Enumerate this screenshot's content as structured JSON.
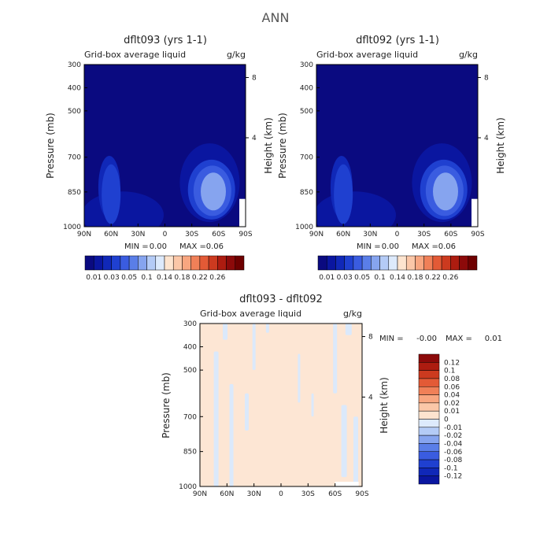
{
  "figure": {
    "title": "ANN"
  },
  "chart_data": [
    {
      "type": "heatmap",
      "title": "dflt093 (yrs 1-1)",
      "subtitle": "Grid-box average liquid",
      "units": "g/kg",
      "xlabel": "",
      "ylabel": "Pressure (mb)",
      "y2label": "Height (km)",
      "x_ticks": [
        "90N",
        "60N",
        "30N",
        "0",
        "30S",
        "60S",
        "90S"
      ],
      "y_ticks": [
        "300",
        "400",
        "500",
        "700",
        "850",
        "1000"
      ],
      "y_tick_values": [
        300,
        400,
        500,
        700,
        850,
        1000
      ],
      "y2_ticks": [
        "8",
        "4"
      ],
      "y2_tick_pressures": [
        356,
        616
      ],
      "ylim": [
        1000,
        300
      ],
      "xlim": [
        90,
        -90
      ],
      "min_label": "MIN =",
      "min_value": "0.00",
      "max_label": "MAX =",
      "max_value": "0.06",
      "colorbar": {
        "orientation": "horizontal",
        "colors": [
          "#0a0a80",
          "#0a16a0",
          "#1028b8",
          "#1f40d0",
          "#3a5ce0",
          "#5a7ee8",
          "#86a4ef",
          "#b4cbf6",
          "#ddeafc",
          "#fde4cf",
          "#fbc7a8",
          "#f8a680",
          "#f08058",
          "#e35a36",
          "#cc3a1f",
          "#ad1c10",
          "#8c0a0a",
          "#6e0000"
        ],
        "labels": [
          "0.01",
          "0.03",
          "0.05",
          "0.1",
          "0.14",
          "0.18",
          "0.22",
          "0.26"
        ],
        "label_after_index": [
          0,
          2,
          4,
          6,
          8,
          10,
          12,
          14
        ]
      },
      "blobs": [
        {
          "lat": 47,
          "p": 950,
          "level": 0
        },
        {
          "lat": -50,
          "p": 810,
          "level": 0
        },
        {
          "lat": 62,
          "p": 830,
          "level": 1
        },
        {
          "lat": -52,
          "p": 840,
          "level": 2
        },
        {
          "lat": 60,
          "p": 860,
          "level": 2
        },
        {
          "lat": -53,
          "p": 845,
          "level": 3
        },
        {
          "lat": -54,
          "p": 848,
          "level": 5
        }
      ]
    },
    {
      "type": "heatmap",
      "title": "dflt092 (yrs 1-1)",
      "subtitle": "Grid-box average liquid",
      "units": "g/kg",
      "xlabel": "",
      "ylabel": "Pressure (mb)",
      "y2label": "Height (km)",
      "x_ticks": [
        "90N",
        "60N",
        "30N",
        "0",
        "30S",
        "60S",
        "90S"
      ],
      "y_ticks": [
        "300",
        "400",
        "500",
        "700",
        "850",
        "1000"
      ],
      "y_tick_values": [
        300,
        400,
        500,
        700,
        850,
        1000
      ],
      "y2_ticks": [
        "8",
        "4"
      ],
      "y2_tick_pressures": [
        356,
        616
      ],
      "ylim": [
        1000,
        300
      ],
      "xlim": [
        90,
        -90
      ],
      "min_label": "MIN =",
      "min_value": "0.00",
      "max_label": "MAX =",
      "max_value": "0.06",
      "colorbar": {
        "orientation": "horizontal",
        "colors": [
          "#0a0a80",
          "#0a16a0",
          "#1028b8",
          "#1f40d0",
          "#3a5ce0",
          "#5a7ee8",
          "#86a4ef",
          "#b4cbf6",
          "#ddeafc",
          "#fde4cf",
          "#fbc7a8",
          "#f8a680",
          "#f08058",
          "#e35a36",
          "#cc3a1f",
          "#ad1c10",
          "#8c0a0a",
          "#6e0000"
        ],
        "labels": [
          "0.01",
          "0.03",
          "0.05",
          "0.1",
          "0.14",
          "0.18",
          "0.22",
          "0.26"
        ],
        "label_after_index": [
          0,
          2,
          4,
          6,
          8,
          10,
          12,
          14
        ]
      },
      "blobs": [
        {
          "lat": 47,
          "p": 950,
          "level": 0
        },
        {
          "lat": -50,
          "p": 810,
          "level": 0
        },
        {
          "lat": 62,
          "p": 830,
          "level": 1
        },
        {
          "lat": -52,
          "p": 840,
          "level": 2
        },
        {
          "lat": 60,
          "p": 860,
          "level": 2
        },
        {
          "lat": -53,
          "p": 845,
          "level": 3
        },
        {
          "lat": -54,
          "p": 848,
          "level": 5
        }
      ]
    },
    {
      "type": "heatmap",
      "title": "dflt093 - dflt092",
      "subtitle": "Grid-box average liquid",
      "units": "g/kg",
      "xlabel": "",
      "ylabel": "Pressure (mb)",
      "y2label": "Height (km)",
      "x_ticks": [
        "90N",
        "60N",
        "30N",
        "0",
        "30S",
        "60S",
        "90S"
      ],
      "y_ticks": [
        "300",
        "400",
        "500",
        "700",
        "850",
        "1000"
      ],
      "y_tick_values": [
        300,
        400,
        500,
        700,
        850,
        1000
      ],
      "y2_ticks": [
        "8",
        "4"
      ],
      "y2_tick_pressures": [
        356,
        616
      ],
      "ylim": [
        1000,
        300
      ],
      "xlim": [
        90,
        -90
      ],
      "min_label": "MIN =",
      "min_value": "-0.00",
      "max_label": "MAX =",
      "max_value": "0.01",
      "background_level_color": "#fde6d4",
      "negative_color": "#dbe9fb",
      "colorbar": {
        "orientation": "vertical",
        "colors_top_to_bottom": [
          "#8c0a0a",
          "#ad1c10",
          "#cc3a1f",
          "#e35a36",
          "#f08058",
          "#f8a680",
          "#fbc7a8",
          "#fde4cf",
          "#ddeafc",
          "#b4cbf6",
          "#86a4ef",
          "#5a7ee8",
          "#3a5ce0",
          "#1f40d0",
          "#1028b8",
          "#0a16a0"
        ],
        "labels": [
          "0.12",
          "0.1",
          "0.08",
          "0.06",
          "0.04",
          "0.02",
          "0.01",
          "0",
          "-0.01",
          "-0.02",
          "-0.04",
          "-0.06",
          "-0.08",
          "-0.1",
          "-0.12"
        ]
      },
      "negative_streaks": [
        {
          "lat": 72,
          "p_top": 420,
          "p_bottom": 1000,
          "width": 6
        },
        {
          "lat": 62,
          "p_top": 300,
          "p_bottom": 370,
          "width": 6
        },
        {
          "lat": 55,
          "p_top": 560,
          "p_bottom": 1000,
          "width": 5
        },
        {
          "lat": 38,
          "p_top": 600,
          "p_bottom": 760,
          "width": 5
        },
        {
          "lat": 30,
          "p_top": 300,
          "p_bottom": 500,
          "width": 4
        },
        {
          "lat": 15,
          "p_top": 300,
          "p_bottom": 340,
          "width": 4
        },
        {
          "lat": -20,
          "p_top": 430,
          "p_bottom": 640,
          "width": 3
        },
        {
          "lat": -35,
          "p_top": 600,
          "p_bottom": 700,
          "width": 3
        },
        {
          "lat": -60,
          "p_top": 300,
          "p_bottom": 600,
          "width": 5
        },
        {
          "lat": -75,
          "p_top": 300,
          "p_bottom": 350,
          "width": 8
        },
        {
          "lat": -70,
          "p_top": 650,
          "p_bottom": 960,
          "width": 7
        },
        {
          "lat": -83,
          "p_top": 700,
          "p_bottom": 1000,
          "width": 6
        }
      ]
    }
  ]
}
